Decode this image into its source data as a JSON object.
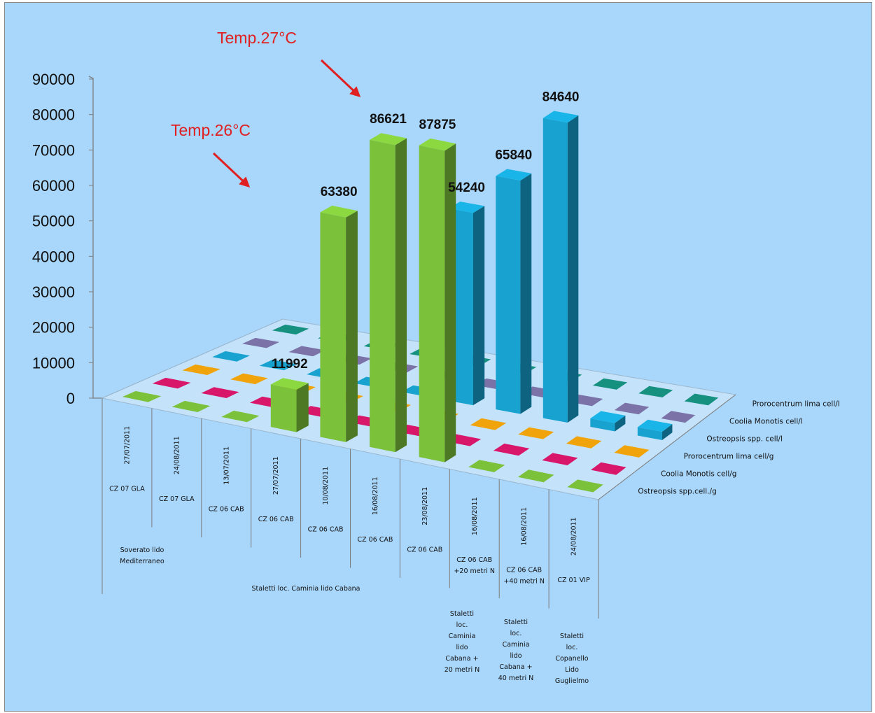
{
  "chart_data": {
    "type": "bar",
    "subtype": "3d-column",
    "ylim": [
      0,
      90000
    ],
    "yticks": [
      0,
      10000,
      20000,
      30000,
      40000,
      50000,
      60000,
      70000,
      80000,
      90000
    ],
    "categories": [
      {
        "date": "27/07/2011",
        "station": "CZ 07 GLA"
      },
      {
        "date": "24/08/2011",
        "station": "CZ 07 GLA"
      },
      {
        "date": "13/07/2011",
        "station": "CZ 06 CAB"
      },
      {
        "date": "27/07/2011",
        "station": "CZ 06 CAB"
      },
      {
        "date": "10/08/2011",
        "station": "CZ 06 CAB"
      },
      {
        "date": "16/08/2011",
        "station": "CZ 06 CAB"
      },
      {
        "date": "23/08/2011",
        "station": "CZ 06 CAB"
      },
      {
        "date": "16/08/2011",
        "station": "CZ 06 CAB +20 metri N"
      },
      {
        "date": "16/08/2011",
        "station": "CZ 06 CAB +40 metri N"
      },
      {
        "date": "24/08/2011",
        "station": "CZ 01 VIP"
      }
    ],
    "groups": [
      {
        "name": "Soverato lido Mediterraneo"
      },
      {
        "name": "Staletti loc. Caminia lido Cabana"
      },
      {
        "name": "Staletti loc. Caminia lido Cabana + 20 metri N"
      },
      {
        "name": "Staletti loc. Caminia lido Cabana + 40 metri N"
      },
      {
        "name": "Staletti loc. Copanello Lido Guglielmo"
      }
    ],
    "series": [
      {
        "name": "Ostreopsis spp.cell./g",
        "color": "#7cc13a",
        "values": [
          0,
          0,
          0,
          11992,
          63380,
          86621,
          87875,
          0,
          0,
          0
        ]
      },
      {
        "name": "Coolia Monotis cell/g",
        "color": "#d8176b",
        "values": [
          0,
          0,
          0,
          0,
          0,
          0,
          0,
          0,
          0,
          0
        ]
      },
      {
        "name": "Prorocentrum lima cell/g",
        "color": "#f0a30a",
        "values": [
          0,
          0,
          0,
          0,
          0,
          0,
          0,
          0,
          0,
          0
        ]
      },
      {
        "name": "Ostreopsis spp. cell/l",
        "color": "#17a2cf",
        "values": [
          0,
          0,
          0,
          0,
          0,
          54240,
          65840,
          84640,
          2000,
          1000
        ]
      },
      {
        "name": "Coolia Monotis cell/l",
        "color": "#7b73a8",
        "values": [
          0,
          0,
          0,
          0,
          0,
          0,
          0,
          0,
          0,
          0
        ]
      },
      {
        "name": "Prorocentrum lima cell/l",
        "color": "#16907f",
        "values": [
          0,
          0,
          0,
          0,
          0,
          0,
          0,
          0,
          0,
          0
        ]
      }
    ],
    "data_labels": [
      "11992",
      "63380",
      "86621",
      "87875",
      "54240",
      "65840",
      "84640"
    ],
    "annotations": [
      "Temp.26°C",
      "Temp.27°C"
    ]
  }
}
